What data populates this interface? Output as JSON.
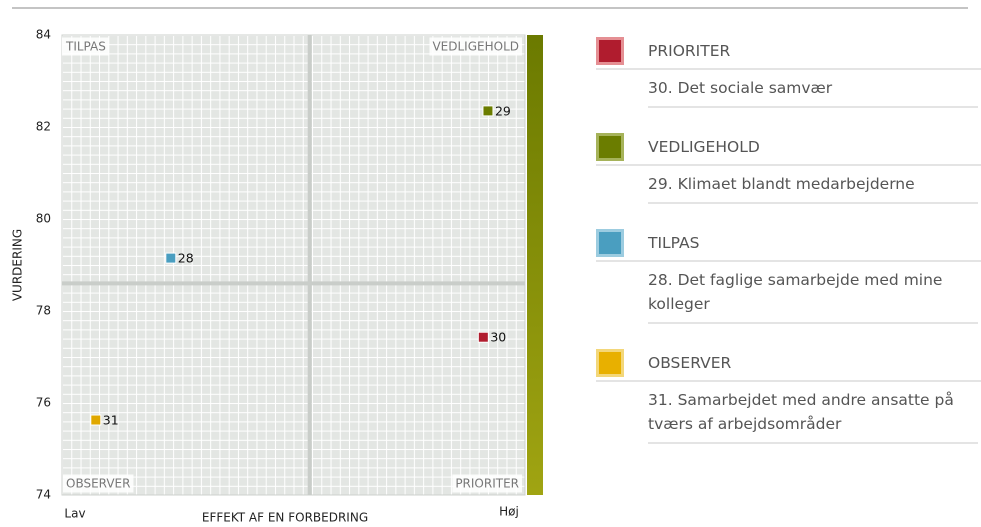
{
  "chart_data": {
    "type": "scatter",
    "xlabel": "EFFEKT AF EN FORBEDRING",
    "ylabel": "VURDERING",
    "x_low": "Lav",
    "x_high": "Høj",
    "xlim": [
      0,
      100
    ],
    "ylim": [
      74,
      84
    ],
    "yticks": [
      74,
      76,
      78,
      80,
      82,
      84
    ],
    "split": {
      "x": 53.5,
      "y": 78.6
    },
    "points": {
      "labels": [
        "29",
        "28",
        "30",
        "31"
      ],
      "x": [
        92,
        23.5,
        91,
        7.3
      ],
      "values": [
        82.35,
        79.15,
        77.43,
        75.63
      ],
      "colors": [
        "#6b7d00",
        "#4a9ec0",
        "#b01c2e",
        "#e0a800"
      ]
    },
    "quadrants": [
      {
        "name": "PRIORITER",
        "color": "#b01c2e",
        "border": "#e58f93",
        "position": "bottom-right",
        "items": [
          "30. Det sociale samvær"
        ]
      },
      {
        "name": "VEDLIGEHOLD",
        "color": "#6b7d00",
        "border": "#a6b35a",
        "position": "top-right",
        "items": [
          "29. Klimaet blandt medarbejderne"
        ]
      },
      {
        "name": "TILPAS",
        "color": "#4a9ec0",
        "border": "#9ccce0",
        "position": "top-left",
        "items": [
          "28. Det faglige samarbejde med mine kolleger"
        ]
      },
      {
        "name": "OBSERVER",
        "color": "#e8b000",
        "border": "#f3d77a",
        "position": "bottom-left",
        "items": [
          "31. Samarbejdet med andre ansatte på tværs af arbejdsområder"
        ]
      }
    ]
  }
}
